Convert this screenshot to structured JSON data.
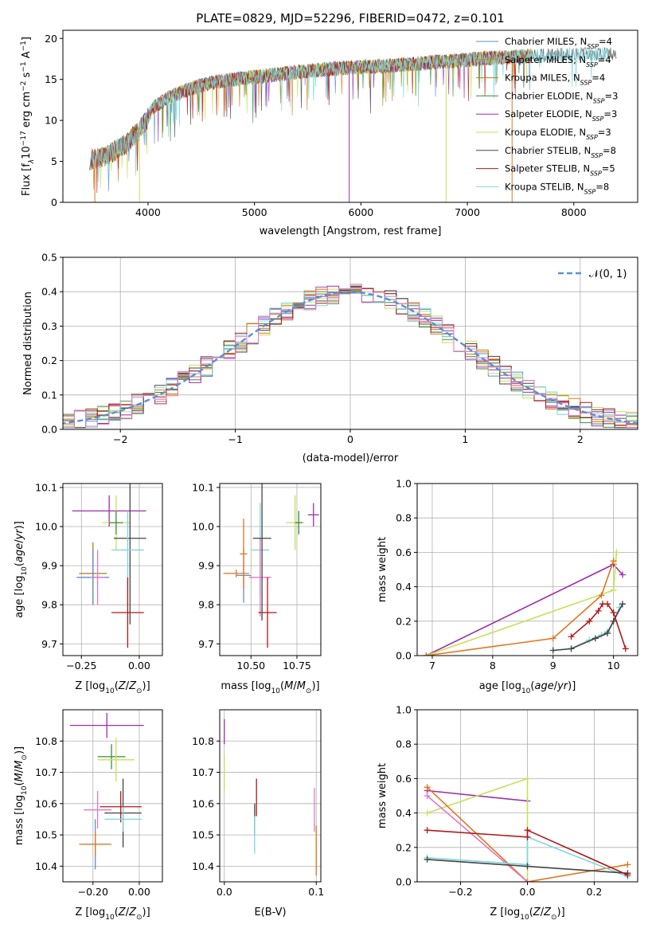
{
  "figure_title": "PLATE=0829, MJD=52296, FIBERID=0472, z=0.101",
  "colors": {
    "chabrier_miles": "#5b8fd6",
    "salpeter_miles": "#e0761e",
    "kroupa_miles": "#b07f12",
    "chabrier_elodie": "#3b8b3b",
    "salpeter_elodie": "#9b2fa8",
    "kroupa_elodie": "#c6e05a",
    "chabrier_stelib": "#444444",
    "salpeter_stelib": "#b01818",
    "kroupa_stelib": "#7fd7dd",
    "pink": "#e377c2",
    "gaussian": "#5b8fd6"
  },
  "chart_data": [
    {
      "id": "spectrum",
      "type": "line",
      "xlabel": "wavelength [Angstrom, rest frame]",
      "ylabel": "Flux [f$_\\lambda$10$^{-17}$ erg cm$^{-2}$ s$^{-1}$ A$^{-1}$]",
      "ylabel_parts": [
        "Flux [f",
        "λ",
        "10",
        "−17",
        " erg cm",
        "−2",
        " s",
        "−1",
        " A",
        "−1",
        "]"
      ],
      "xlim": [
        3200,
        8600
      ],
      "ylim": [
        0,
        21
      ],
      "xticks": [
        4000,
        5000,
        6000,
        7000,
        8000
      ],
      "yticks": [
        0,
        5,
        10,
        15,
        20
      ],
      "legend_position": "top-right",
      "series": [
        {
          "name": "Chabrier MILES, N",
          "sub": "SSP",
          "suffix": "=4",
          "color": "#5b8fd6"
        },
        {
          "name": "Salpeter MILES, N",
          "sub": "SSP",
          "suffix": "=4",
          "color": "#e0761e"
        },
        {
          "name": "Kroupa MILES, N",
          "sub": "SSP",
          "suffix": "=4",
          "color": "#b07f12"
        },
        {
          "name": "Chabrier ELODIE, N",
          "sub": "SSP",
          "suffix": "=3",
          "color": "#3b8b3b"
        },
        {
          "name": "Salpeter ELODIE, N",
          "sub": "SSP",
          "suffix": "=3",
          "color": "#9b2fa8"
        },
        {
          "name": "Kroupa ELODIE, N",
          "sub": "SSP",
          "suffix": "=3",
          "color": "#c6e05a"
        },
        {
          "name": "Chabrier STELIB, N",
          "sub": "SSP",
          "suffix": "=8",
          "color": "#444444"
        },
        {
          "name": "Salpeter STELIB, N",
          "sub": "SSP",
          "suffix": "=5",
          "color": "#b01818"
        },
        {
          "name": "Kroupa STELIB, N",
          "sub": "SSP",
          "suffix": "=8",
          "color": "#7fd7dd"
        }
      ],
      "continuum": {
        "x": [
          3450,
          3600,
          3800,
          3950,
          4050,
          4200,
          4400,
          4600,
          4800,
          5000,
          5200,
          5500,
          5800,
          6000,
          6300,
          6600,
          6900,
          7200,
          7500,
          8000,
          8400
        ],
        "y": [
          5.2,
          5.6,
          7.2,
          9.3,
          11.6,
          12.8,
          13.9,
          14.6,
          15.0,
          15.3,
          15.6,
          16.0,
          16.4,
          16.5,
          16.7,
          17.0,
          17.3,
          17.6,
          17.8,
          18.0,
          18.2
        ]
      },
      "dropouts": [
        {
          "x": 3500,
          "color": "#e0761e"
        },
        {
          "x": 3920,
          "color": "#c6e05a"
        },
        {
          "x": 5890,
          "color": "#9b2fa8"
        },
        {
          "x": 6800,
          "color": "#c6e05a"
        },
        {
          "x": 7420,
          "color": "#e0761e"
        }
      ]
    },
    {
      "id": "residuals",
      "type": "histogram",
      "xlabel": "(data-model)/error",
      "ylabel": "Normed distribution",
      "xlim": [
        -2.5,
        2.5
      ],
      "ylim": [
        0,
        0.5
      ],
      "xticks": [
        -2,
        -1,
        0,
        1,
        2
      ],
      "xtick_labels": [
        "−2",
        "−1",
        "0",
        "1",
        "2"
      ],
      "yticks": [
        0.0,
        0.1,
        0.2,
        0.3,
        0.4,
        0.5
      ],
      "ytick_labels": [
        "0.0",
        "0.1",
        "0.2",
        "0.3",
        "0.4",
        "0.5"
      ],
      "grid": true,
      "legend_position": "top-right",
      "legend": "𝒩(0, 1)",
      "gaussian": {
        "mean": 0,
        "sigma": 1
      }
    },
    {
      "id": "age-vs-Z",
      "type": "scatter",
      "xlabel": "Z [log10(Z/Z⊙)]",
      "ylabel": "age  [log10(age/yr)]",
      "xlim": [
        -0.33,
        0.1
      ],
      "ylim": [
        9.67,
        10.11
      ],
      "xticks": [
        -0.25,
        0.0
      ],
      "xtick_labels": [
        "−0.25",
        "0.00"
      ],
      "yticks": [
        9.7,
        9.8,
        9.9,
        10.0,
        10.1
      ],
      "ytick_labels": [
        "9.7",
        "9.8",
        "9.9",
        "10.0",
        "10.1"
      ],
      "grid": true,
      "points": [
        {
          "x": -0.2,
          "y": 9.88,
          "xerr": 0.06,
          "yerr": 0.08,
          "color": "#b07f12"
        },
        {
          "x": -0.2,
          "y": 9.87,
          "xerr": 0.07,
          "yerr": 0.07,
          "color": "#5b8fd6"
        },
        {
          "x": -0.18,
          "y": 9.87,
          "xerr": 0.03,
          "yerr": 0.07,
          "color": "#e377c2"
        },
        {
          "x": -0.13,
          "y": 10.04,
          "xerr": 0.16,
          "yerr": 0.04,
          "color": "#9b2fa8"
        },
        {
          "x": -0.1,
          "y": 10.01,
          "xerr": 0.06,
          "yerr": 0.07,
          "color": "#c6e05a"
        },
        {
          "x": -0.1,
          "y": 10.01,
          "xerr": 0.03,
          "yerr": 0.03,
          "color": "#3b8b3b"
        },
        {
          "x": -0.04,
          "y": 9.97,
          "xerr": 0.07,
          "yerr": 0.22,
          "color": "#444444"
        },
        {
          "x": -0.05,
          "y": 9.94,
          "xerr": 0.07,
          "yerr": 0.1,
          "color": "#7fd7dd"
        },
        {
          "x": -0.05,
          "y": 9.78,
          "xerr": 0.07,
          "yerr": 0.09,
          "color": "#b01818"
        }
      ]
    },
    {
      "id": "age-vs-mass",
      "type": "scatter",
      "xlabel": "mass [log10(M/M⊙)]",
      "xlim": [
        10.33,
        10.88
      ],
      "ylim": [
        9.67,
        10.11
      ],
      "xticks": [
        10.5,
        10.75
      ],
      "xtick_labels": [
        "10.50",
        "10.75"
      ],
      "yticks": [
        9.7,
        9.8,
        9.9,
        10.0,
        10.1
      ],
      "ytick_labels": [
        "9.7",
        "9.8",
        "9.9",
        "10.0",
        "10.1"
      ],
      "grid": true,
      "points": [
        {
          "x": 10.42,
          "y": 9.88,
          "xerr": 0.07,
          "yerr": 0.01,
          "color": "#e0761e"
        },
        {
          "x": 10.46,
          "y": 9.875,
          "xerr": 0.04,
          "yerr": 0.07,
          "color": "#5b8fd6"
        },
        {
          "x": 10.46,
          "y": 9.93,
          "xerr": 0.02,
          "yerr": 0.09,
          "color": "#e0761e"
        },
        {
          "x": 10.55,
          "y": 9.94,
          "xerr": 0.05,
          "yerr": 0.12,
          "color": "#7fd7dd"
        },
        {
          "x": 10.55,
          "y": 9.87,
          "xerr": 0.06,
          "yerr": 0.1,
          "color": "#e377c2"
        },
        {
          "x": 10.56,
          "y": 9.97,
          "xerr": 0.05,
          "yerr": 0.21,
          "color": "#444444"
        },
        {
          "x": 10.59,
          "y": 9.78,
          "xerr": 0.05,
          "yerr": 0.09,
          "color": "#b01818"
        },
        {
          "x": 10.74,
          "y": 10.01,
          "xerr": 0.05,
          "yerr": 0.07,
          "color": "#c6e05a"
        },
        {
          "x": 10.76,
          "y": 10.01,
          "xerr": 0.02,
          "yerr": 0.03,
          "color": "#3b8b3b"
        },
        {
          "x": 10.84,
          "y": 10.03,
          "xerr": 0.03,
          "yerr": 0.03,
          "color": "#9b2fa8"
        }
      ]
    },
    {
      "id": "weight-vs-age",
      "type": "line",
      "xlabel": "age  [log10(age/yr)]",
      "ylabel": "mass weight",
      "xlim": [
        6.75,
        10.4
      ],
      "ylim": [
        0,
        1
      ],
      "xticks": [
        7,
        8,
        9,
        10
      ],
      "yticks": [
        0.0,
        0.2,
        0.4,
        0.6,
        0.8,
        1.0
      ],
      "ytick_labels": [
        "0.0",
        "0.2",
        "0.4",
        "0.6",
        "0.8",
        "1.0"
      ],
      "grid": true,
      "series": [
        {
          "color": "#9b2fa8",
          "x": [
            6.9,
            10.0,
            10.15
          ],
          "y": [
            0.0,
            0.53,
            0.47
          ]
        },
        {
          "color": "#c6e05a",
          "x": [
            6.9,
            10.0,
            10.05
          ],
          "y": [
            0.0,
            0.38,
            0.6
          ]
        },
        {
          "color": "#e0761e",
          "x": [
            6.9,
            9.0,
            9.8,
            10.0
          ],
          "y": [
            0.0,
            0.1,
            0.35,
            0.55
          ]
        },
        {
          "color": "#7fd7dd",
          "x": [
            9.0,
            9.3,
            9.6,
            9.8,
            9.9,
            10.0,
            10.1
          ],
          "y": [
            0.03,
            0.04,
            0.09,
            0.12,
            0.14,
            0.2,
            0.28
          ]
        },
        {
          "color": "#444444",
          "x": [
            9.0,
            9.3,
            9.7,
            9.9,
            10.0,
            10.15
          ],
          "y": [
            0.03,
            0.04,
            0.1,
            0.13,
            0.2,
            0.3
          ]
        },
        {
          "color": "#b01818",
          "x": [
            9.3,
            9.6,
            9.75,
            9.82,
            9.9,
            10.0,
            10.2
          ],
          "y": [
            0.11,
            0.2,
            0.26,
            0.3,
            0.3,
            0.25,
            0.04
          ]
        }
      ]
    },
    {
      "id": "mass-vs-Z",
      "type": "scatter",
      "xlabel": "Z [log10(Z/Z⊙)]",
      "ylabel": "mass [log10(M/M⊙)]",
      "xlim": [
        -0.33,
        0.1
      ],
      "ylim": [
        10.35,
        10.9
      ],
      "xticks": [
        -0.2,
        0.0
      ],
      "xtick_labels": [
        "−0.20",
        "0.00"
      ],
      "yticks": [
        10.4,
        10.5,
        10.6,
        10.7,
        10.8
      ],
      "ytick_labels": [
        "10.4",
        "10.5",
        "10.6",
        "10.7",
        "10.8"
      ],
      "grid": true,
      "points": [
        {
          "x": -0.14,
          "y": 10.85,
          "xerr": 0.16,
          "yerr": 0.04,
          "color": "#9b2fa8"
        },
        {
          "x": -0.12,
          "y": 10.75,
          "xerr": 0.06,
          "yerr": 0.04,
          "color": "#3b8b3b"
        },
        {
          "x": -0.1,
          "y": 10.74,
          "xerr": 0.08,
          "yerr": 0.07,
          "color": "#c6e05a"
        },
        {
          "x": -0.18,
          "y": 10.58,
          "xerr": 0.06,
          "yerr": 0.06,
          "color": "#e377c2"
        },
        {
          "x": -0.08,
          "y": 10.59,
          "xerr": 0.09,
          "yerr": 0.05,
          "color": "#b01818"
        },
        {
          "x": -0.07,
          "y": 10.57,
          "xerr": 0.08,
          "yerr": 0.11,
          "color": "#444444"
        },
        {
          "x": -0.07,
          "y": 10.55,
          "xerr": 0.08,
          "yerr": 0.04,
          "color": "#7fd7dd"
        },
        {
          "x": -0.19,
          "y": 10.47,
          "xerr": 0.06,
          "yerr": 0.08,
          "color": "#5b8fd6"
        },
        {
          "x": -0.19,
          "y": 10.47,
          "xerr": 0.07,
          "yerr": 0.04,
          "color": "#e0761e"
        }
      ]
    },
    {
      "id": "mass-vs-ebv",
      "type": "scatter",
      "xlabel": "E(B-V)",
      "xlim": [
        -0.005,
        0.105
      ],
      "ylim": [
        10.35,
        10.9
      ],
      "xticks": [
        0.0,
        0.1
      ],
      "xtick_labels": [
        "0.0",
        "0.1"
      ],
      "yticks": [
        10.4,
        10.5,
        10.6,
        10.7,
        10.8
      ],
      "ytick_labels": [
        "10.4",
        "10.5",
        "10.6",
        "10.7",
        "10.8"
      ],
      "grid": true,
      "points": [
        {
          "x": 0.0,
          "y": 10.83,
          "xerr": 0,
          "yerr": 0.04,
          "color": "#9b2fa8"
        },
        {
          "x": 0.0,
          "y": 10.7,
          "xerr": 0,
          "yerr": 0.06,
          "color": "#c6e05a"
        },
        {
          "x": 0.035,
          "y": 10.62,
          "xerr": 0,
          "yerr": 0.06,
          "color": "#b01818"
        },
        {
          "x": 0.033,
          "y": 10.55,
          "xerr": 0,
          "yerr": 0.05,
          "color": "#444444"
        },
        {
          "x": 0.033,
          "y": 10.5,
          "xerr": 0,
          "yerr": 0.06,
          "color": "#7fd7dd"
        },
        {
          "x": 0.098,
          "y": 10.58,
          "xerr": 0,
          "yerr": 0.07,
          "color": "#e377c2"
        },
        {
          "x": 0.1,
          "y": 10.45,
          "xerr": 0,
          "yerr": 0.08,
          "color": "#e0761e"
        }
      ]
    },
    {
      "id": "weight-vs-Z",
      "type": "line",
      "xlabel": "Z [log10(Z/Z⊙)]",
      "ylabel": "mass weight",
      "xlim": [
        -0.33,
        0.33
      ],
      "ylim": [
        0,
        1
      ],
      "xticks": [
        -0.2,
        0.0,
        0.2
      ],
      "xtick_labels": [
        "−0.2",
        "0.0",
        "0.2"
      ],
      "yticks": [
        0.0,
        0.2,
        0.4,
        0.6,
        0.8,
        1.0
      ],
      "ytick_labels": [
        "0.0",
        "0.2",
        "0.4",
        "0.6",
        "0.8",
        "1.0"
      ],
      "grid": true,
      "series": [
        {
          "color": "#9b2fa8",
          "x": [
            -0.3,
            0.0
          ],
          "y": [
            0.53,
            0.47
          ]
        },
        {
          "color": "#c6e05a",
          "x": [
            -0.3,
            0.0,
            0.0
          ],
          "y": [
            0.4,
            0.6,
            0.0
          ]
        },
        {
          "color": "#e0761e",
          "x": [
            -0.3,
            0.0,
            0.3
          ],
          "y": [
            0.55,
            0.0,
            0.1
          ]
        },
        {
          "color": "#e377c2",
          "x": [
            -0.3,
            0.0
          ],
          "y": [
            0.5,
            0.0
          ]
        },
        {
          "color": "#7fd7dd",
          "x": [
            -0.3,
            0.0,
            0.0,
            0.3
          ],
          "y": [
            0.14,
            0.1,
            0.26,
            0.03
          ]
        },
        {
          "color": "#444444",
          "x": [
            -0.3,
            0.0,
            0.3
          ],
          "y": [
            0.13,
            0.09,
            0.05
          ]
        },
        {
          "color": "#b01818",
          "x": [
            -0.3,
            0.0,
            0.0,
            0.3
          ],
          "y": [
            0.3,
            0.26,
            0.3,
            0.04
          ]
        }
      ]
    }
  ]
}
